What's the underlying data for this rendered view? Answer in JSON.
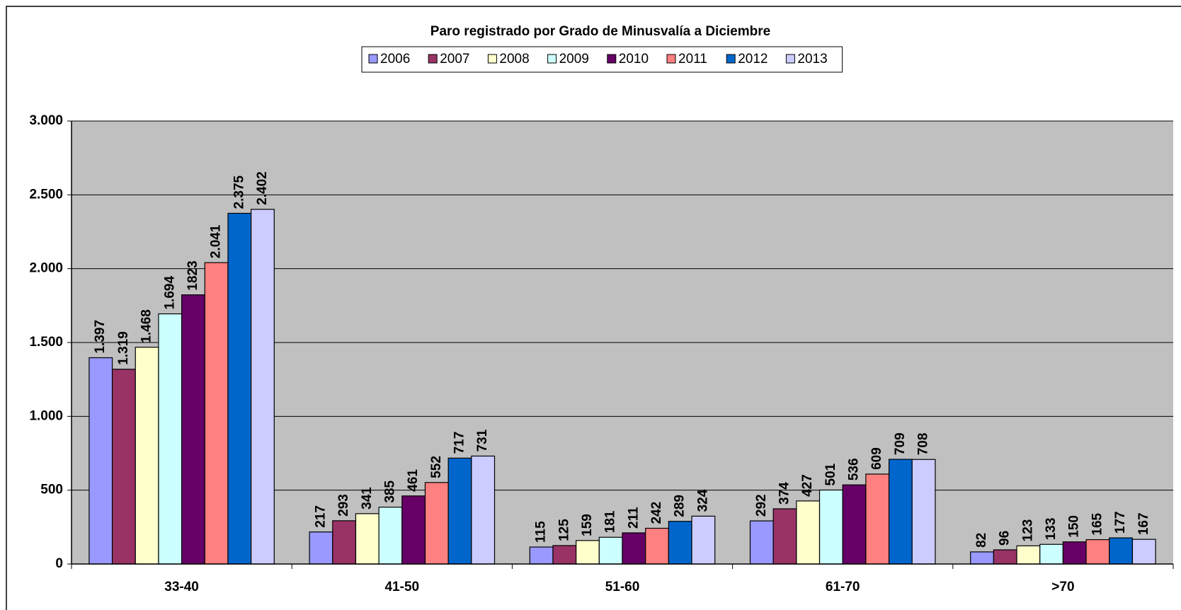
{
  "chart_data": {
    "type": "bar",
    "title": "Paro registrado por Grado de Minusvalía a Diciembre",
    "categories": [
      "33-40",
      "41-50",
      "51-60",
      "61-70",
      ">70"
    ],
    "series": [
      {
        "name": "2006",
        "color": "#9999ff",
        "values": [
          1397,
          217,
          115,
          292,
          82
        ],
        "value_labels": [
          "1.397",
          "217",
          "115",
          "292",
          "82"
        ]
      },
      {
        "name": "2007",
        "color": "#993366",
        "values": [
          1319,
          293,
          125,
          374,
          96
        ],
        "value_labels": [
          "1.319",
          "293",
          "125",
          "374",
          "96"
        ]
      },
      {
        "name": "2008",
        "color": "#ffffcc",
        "values": [
          1468,
          341,
          159,
          427,
          123
        ],
        "value_labels": [
          "1.468",
          "341",
          "159",
          "427",
          "123"
        ]
      },
      {
        "name": "2009",
        "color": "#ccffff",
        "values": [
          1694,
          385,
          181,
          501,
          133
        ],
        "value_labels": [
          "1.694",
          "385",
          "181",
          "501",
          "133"
        ]
      },
      {
        "name": "2010",
        "color": "#660066",
        "values": [
          1823,
          461,
          211,
          536,
          150
        ]
      },
      {
        "name": "2011",
        "color": "#ff8080",
        "values": [
          2041,
          552,
          242,
          609,
          165
        ],
        "value_labels": [
          "2.041",
          "552",
          "242",
          "609",
          "165"
        ]
      },
      {
        "name": "2012",
        "color": "#0066cc",
        "values": [
          2375,
          717,
          289,
          709,
          177
        ],
        "value_labels": [
          "2.375",
          "717",
          "289",
          "709",
          "177"
        ]
      },
      {
        "name": "2013",
        "color": "#ccccff",
        "values": [
          2402,
          731,
          324,
          708,
          167
        ],
        "value_labels": [
          "2.402",
          "731",
          "324",
          "708",
          "167"
        ]
      }
    ],
    "ylim": [
      0,
      3000
    ],
    "yticks": [
      0,
      500,
      {
        "value": 1000,
        "label": "1.000"
      },
      {
        "value": 1500,
        "label": "1.500"
      },
      {
        "value": 2000,
        "label": "2.000"
      },
      {
        "value": 2500,
        "label": "2.500"
      },
      {
        "value": 3000,
        "label": "3.000"
      }
    ],
    "grid": true,
    "legend": "top"
  }
}
